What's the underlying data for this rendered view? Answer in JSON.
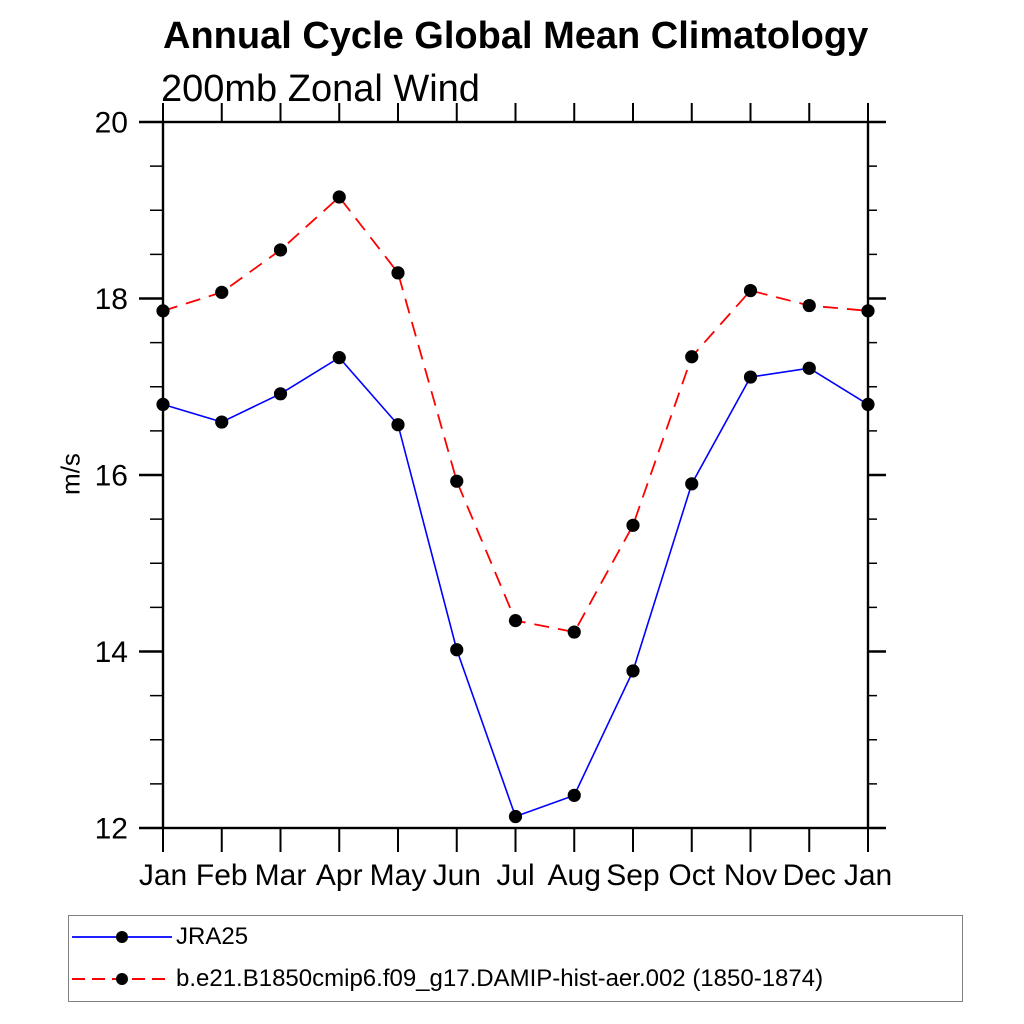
{
  "page": {
    "background": "#ffffff"
  },
  "chart_data": {
    "type": "line",
    "title": "Annual Cycle Global Mean Climatology",
    "subtitle": "200mb Zonal Wind",
    "ylabel": "m/s",
    "xlabel": "",
    "x_categories": [
      "Jan",
      "Feb",
      "Mar",
      "Apr",
      "May",
      "Jun",
      "Jul",
      "Aug",
      "Sep",
      "Oct",
      "Nov",
      "Dec",
      "Jan"
    ],
    "ylim": [
      12,
      20
    ],
    "y_major_ticks": [
      12,
      14,
      16,
      18,
      20
    ],
    "y_minor_step": 0.5,
    "grid": false,
    "legend_position": "bottom-left",
    "axis_color": "#000000",
    "marker": "filled-circle",
    "marker_color": "#000000",
    "series": [
      {
        "name": "JRA25",
        "color": "#0000ff",
        "line_style": "solid",
        "marker": "filled-circle",
        "values": [
          16.8,
          16.6,
          16.92,
          17.33,
          16.57,
          14.02,
          12.13,
          12.37,
          13.78,
          15.9,
          17.11,
          17.21,
          16.8
        ]
      },
      {
        "name": "b.e21.B1850cmip6.f09_g17.DAMIP-hist-aer.002 (1850-1874)",
        "color": "#ff0000",
        "line_style": "dashed",
        "marker": "filled-circle",
        "values": [
          17.86,
          18.07,
          18.55,
          19.15,
          18.29,
          15.93,
          14.35,
          14.22,
          15.43,
          17.34,
          18.09,
          17.92,
          17.86
        ]
      }
    ]
  }
}
